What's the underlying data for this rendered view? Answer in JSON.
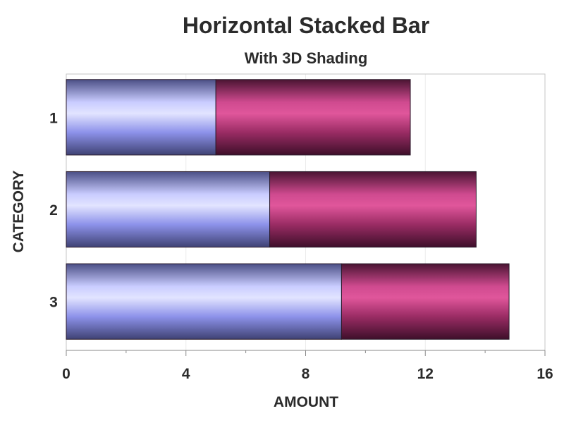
{
  "chart_data": {
    "type": "bar",
    "orientation": "horizontal",
    "stacked": true,
    "title": "Horizontal Stacked Bar",
    "subtitle": "With 3D Shading",
    "xlabel": "AMOUNT",
    "ylabel": "CATEGORY",
    "categories": [
      "1",
      "2",
      "3"
    ],
    "series": [
      {
        "values": [
          5.0,
          6.8,
          9.2
        ],
        "color": "#9aa0f2"
      },
      {
        "values": [
          6.5,
          6.9,
          5.6
        ],
        "color": "#c8458a"
      }
    ],
    "xlim": [
      0,
      16
    ],
    "xticks": [
      0,
      4,
      8,
      12,
      16
    ],
    "xtick_labels": [
      "0",
      "4",
      "8",
      "12",
      "16"
    ],
    "grid": true
  }
}
